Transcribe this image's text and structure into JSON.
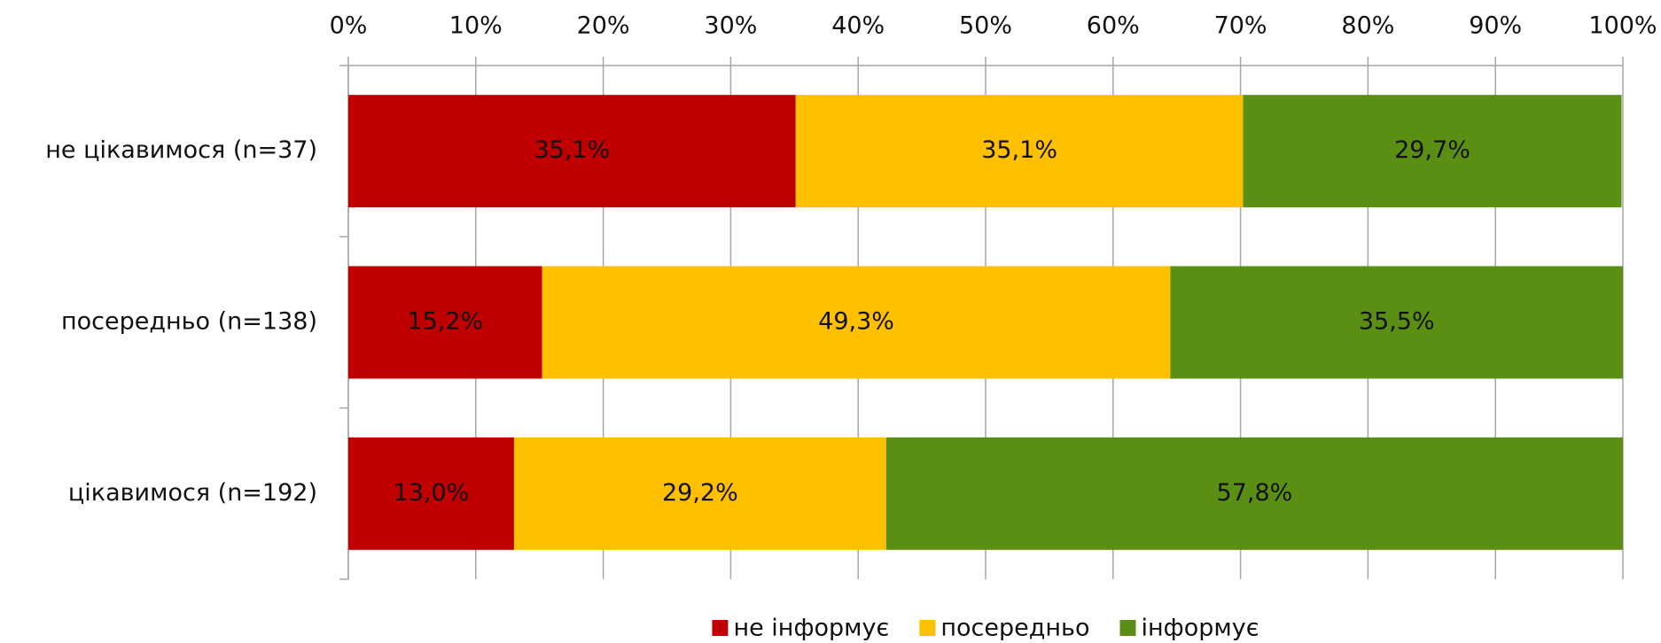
{
  "chart_data": {
    "type": "stacked_barh",
    "categories": [
      "не цікавимося (n=37)",
      "посередньо (n=138)",
      "цікавимося (n=192)"
    ],
    "series": [
      {
        "name": "не інформує",
        "color": "#c00000",
        "values": [
          35.1,
          15.2,
          13.0
        ],
        "value_labels": [
          "35,1%",
          "15,2%",
          "13,0%"
        ]
      },
      {
        "name": "посередньо",
        "color": "#ffc000",
        "values": [
          35.1,
          49.3,
          29.2
        ],
        "value_labels": [
          "35,1%",
          "49,3%",
          "29,2%"
        ]
      },
      {
        "name": "інформує",
        "color": "#5a8f14",
        "values": [
          29.7,
          35.5,
          57.8
        ],
        "value_labels": [
          "29,7%",
          "35,5%",
          "57,8%"
        ]
      }
    ],
    "xlim": [
      0,
      100
    ],
    "xticks": [
      {
        "value": 0,
        "label": "0%"
      },
      {
        "value": 10,
        "label": "10%"
      },
      {
        "value": 20,
        "label": "20%"
      },
      {
        "value": 30,
        "label": "30%"
      },
      {
        "value": 40,
        "label": "40%"
      },
      {
        "value": 50,
        "label": "50%"
      },
      {
        "value": 60,
        "label": "60%"
      },
      {
        "value": 70,
        "label": "70%"
      },
      {
        "value": 80,
        "label": "80%"
      },
      {
        "value": 90,
        "label": "90%"
      },
      {
        "value": 100,
        "label": "100%"
      }
    ],
    "grid": true,
    "legend": "bottom"
  }
}
